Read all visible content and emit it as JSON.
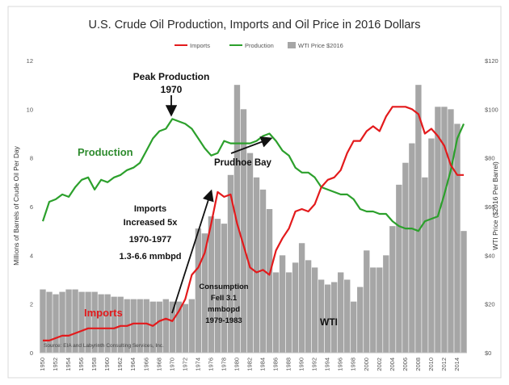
{
  "chart_data": {
    "type": "bar+line",
    "title": "U.S. Crude Oil Production, Imports and Oil Price in 2016 Dollars",
    "legend": [
      "Imports",
      "Production",
      "WTI Price $2016"
    ],
    "legend_position": "top-center",
    "ylabel_left": "Millions of Barrels of Crude Oil Per Day",
    "ylabel_right": "WTI Price ($2016 Per Barrel)",
    "y_left_range": [
      0,
      12
    ],
    "y_left_ticks": [
      "0",
      "2",
      "4",
      "6",
      "8",
      "10",
      "12"
    ],
    "y_right_range": [
      0,
      120
    ],
    "y_right_ticks": [
      "$0",
      "$20",
      "$40",
      "$60",
      "$80",
      "$100",
      "$120"
    ],
    "x_range": [
      1950,
      2015
    ],
    "x_ticks": [
      "1950",
      "1952",
      "1954",
      "1956",
      "1958",
      "1960",
      "1962",
      "1964",
      "1966",
      "1968",
      "1970",
      "1972",
      "1974",
      "1976",
      "1978",
      "1980",
      "1982",
      "1984",
      "1986",
      "1988",
      "1990",
      "1992",
      "1994",
      "1996",
      "1998",
      "2000",
      "2002",
      "2004",
      "2006",
      "2008",
      "2010",
      "2012",
      "2014"
    ],
    "grid": false,
    "series": [
      {
        "name": "Production",
        "type": "line",
        "color": "#2ca02c",
        "axis": "left",
        "x": [
          1950,
          1951,
          1952,
          1953,
          1954,
          1955,
          1956,
          1957,
          1958,
          1959,
          1960,
          1961,
          1962,
          1963,
          1964,
          1965,
          1966,
          1967,
          1968,
          1969,
          1970,
          1971,
          1972,
          1973,
          1974,
          1975,
          1976,
          1977,
          1978,
          1979,
          1980,
          1981,
          1982,
          1983,
          1984,
          1985,
          1986,
          1987,
          1988,
          1989,
          1990,
          1991,
          1992,
          1993,
          1994,
          1995,
          1996,
          1997,
          1998,
          1999,
          2000,
          2001,
          2002,
          2003,
          2004,
          2005,
          2006,
          2007,
          2008,
          2009,
          2010,
          2011,
          2012,
          2013,
          2014,
          2015
        ],
        "values": [
          5.4,
          6.2,
          6.3,
          6.5,
          6.4,
          6.8,
          7.1,
          7.2,
          6.7,
          7.1,
          7.0,
          7.2,
          7.3,
          7.5,
          7.6,
          7.8,
          8.3,
          8.8,
          9.1,
          9.2,
          9.6,
          9.5,
          9.4,
          9.2,
          8.8,
          8.4,
          8.1,
          8.2,
          8.7,
          8.6,
          8.6,
          8.6,
          8.6,
          8.7,
          8.9,
          9.0,
          8.7,
          8.3,
          8.1,
          7.6,
          7.4,
          7.4,
          7.2,
          6.8,
          6.7,
          6.6,
          6.5,
          6.5,
          6.3,
          5.9,
          5.8,
          5.8,
          5.7,
          5.7,
          5.4,
          5.2,
          5.1,
          5.1,
          5.0,
          5.4,
          5.5,
          5.6,
          6.5,
          7.5,
          8.8,
          9.4
        ]
      },
      {
        "name": "Imports",
        "type": "line",
        "color": "#e31a1c",
        "axis": "left",
        "x": [
          1950,
          1951,
          1952,
          1953,
          1954,
          1955,
          1956,
          1957,
          1958,
          1959,
          1960,
          1961,
          1962,
          1963,
          1964,
          1965,
          1966,
          1967,
          1968,
          1969,
          1970,
          1971,
          1972,
          1973,
          1974,
          1975,
          1976,
          1977,
          1978,
          1979,
          1980,
          1981,
          1982,
          1983,
          1984,
          1985,
          1986,
          1987,
          1988,
          1989,
          1990,
          1991,
          1992,
          1993,
          1994,
          1995,
          1996,
          1997,
          1998,
          1999,
          2000,
          2001,
          2002,
          2003,
          2004,
          2005,
          2006,
          2007,
          2008,
          2009,
          2010,
          2011,
          2012,
          2013,
          2014,
          2015
        ],
        "values": [
          0.5,
          0.5,
          0.6,
          0.7,
          0.7,
          0.8,
          0.9,
          1.0,
          1.0,
          1.0,
          1.0,
          1.0,
          1.1,
          1.1,
          1.2,
          1.2,
          1.2,
          1.1,
          1.3,
          1.4,
          1.3,
          1.7,
          2.2,
          3.2,
          3.5,
          4.1,
          5.3,
          6.6,
          6.4,
          6.5,
          5.3,
          4.4,
          3.5,
          3.3,
          3.4,
          3.2,
          4.2,
          4.7,
          5.1,
          5.8,
          5.9,
          5.8,
          6.1,
          6.8,
          7.1,
          7.2,
          7.5,
          8.2,
          8.7,
          8.7,
          9.1,
          9.3,
          9.1,
          9.7,
          10.1,
          10.1,
          10.1,
          10.0,
          9.8,
          9.0,
          9.2,
          8.9,
          8.5,
          7.7,
          7.3,
          7.3
        ]
      },
      {
        "name": "WTI Price $2016",
        "type": "bar",
        "color": "#a6a6a6",
        "axis": "right",
        "x": [
          1950,
          1951,
          1952,
          1953,
          1954,
          1955,
          1956,
          1957,
          1958,
          1959,
          1960,
          1961,
          1962,
          1963,
          1964,
          1965,
          1966,
          1967,
          1968,
          1969,
          1970,
          1971,
          1972,
          1973,
          1974,
          1975,
          1976,
          1977,
          1978,
          1979,
          1980,
          1981,
          1982,
          1983,
          1984,
          1985,
          1986,
          1987,
          1988,
          1989,
          1990,
          1991,
          1992,
          1993,
          1994,
          1995,
          1996,
          1997,
          1998,
          1999,
          2000,
          2001,
          2002,
          2003,
          2004,
          2005,
          2006,
          2007,
          2008,
          2009,
          2010,
          2011,
          2012,
          2013,
          2014,
          2015
        ],
        "values": [
          26,
          25,
          24,
          25,
          26,
          26,
          25,
          25,
          25,
          24,
          24,
          23,
          23,
          22,
          22,
          22,
          22,
          21,
          21,
          22,
          21,
          21,
          20,
          22,
          51,
          49,
          56,
          55,
          53,
          73,
          110,
          100,
          82,
          72,
          67,
          59,
          33,
          40,
          33,
          37,
          45,
          38,
          35,
          30,
          28,
          29,
          33,
          30,
          21,
          27,
          42,
          35,
          35,
          40,
          52,
          69,
          78,
          86,
          110,
          72,
          88,
          101,
          101,
          100,
          94,
          50
        ]
      }
    ],
    "annotations": [
      {
        "text": "Peak Production",
        "x": 1970,
        "y": 11.2
      },
      {
        "text": "1970",
        "x": 1970,
        "y": 10.7
      },
      {
        "text": "Production",
        "x": 1959,
        "y": 8.0
      },
      {
        "text": "Prudhoe Bay",
        "x": 1986,
        "y": 7.8
      },
      {
        "text": "Imports",
        "x": 1969,
        "y": 6.8
      },
      {
        "text": "Increased 5x",
        "x": 1969,
        "y": 6.1
      },
      {
        "text": "1970-1977",
        "x": 1969,
        "y": 5.4
      },
      {
        "text": "1.3-6.6 mmbpd",
        "x": 1969,
        "y": 4.6
      },
      {
        "text": "Consumption",
        "x": 1985,
        "y": 3.6
      },
      {
        "text": "Fell 3.1",
        "x": 1985,
        "y": 2.9
      },
      {
        "text": "mmbopd",
        "x": 1985,
        "y": 2.3
      },
      {
        "text": "1979-1983",
        "x": 1985,
        "y": 1.7
      },
      {
        "text": "Imports",
        "x": 1959,
        "y": 1.5
      },
      {
        "text": "WTI",
        "x": 1994,
        "y": 1.3
      }
    ],
    "source": "Source: EIA and Labyrinth Consulting Services, Inc."
  }
}
